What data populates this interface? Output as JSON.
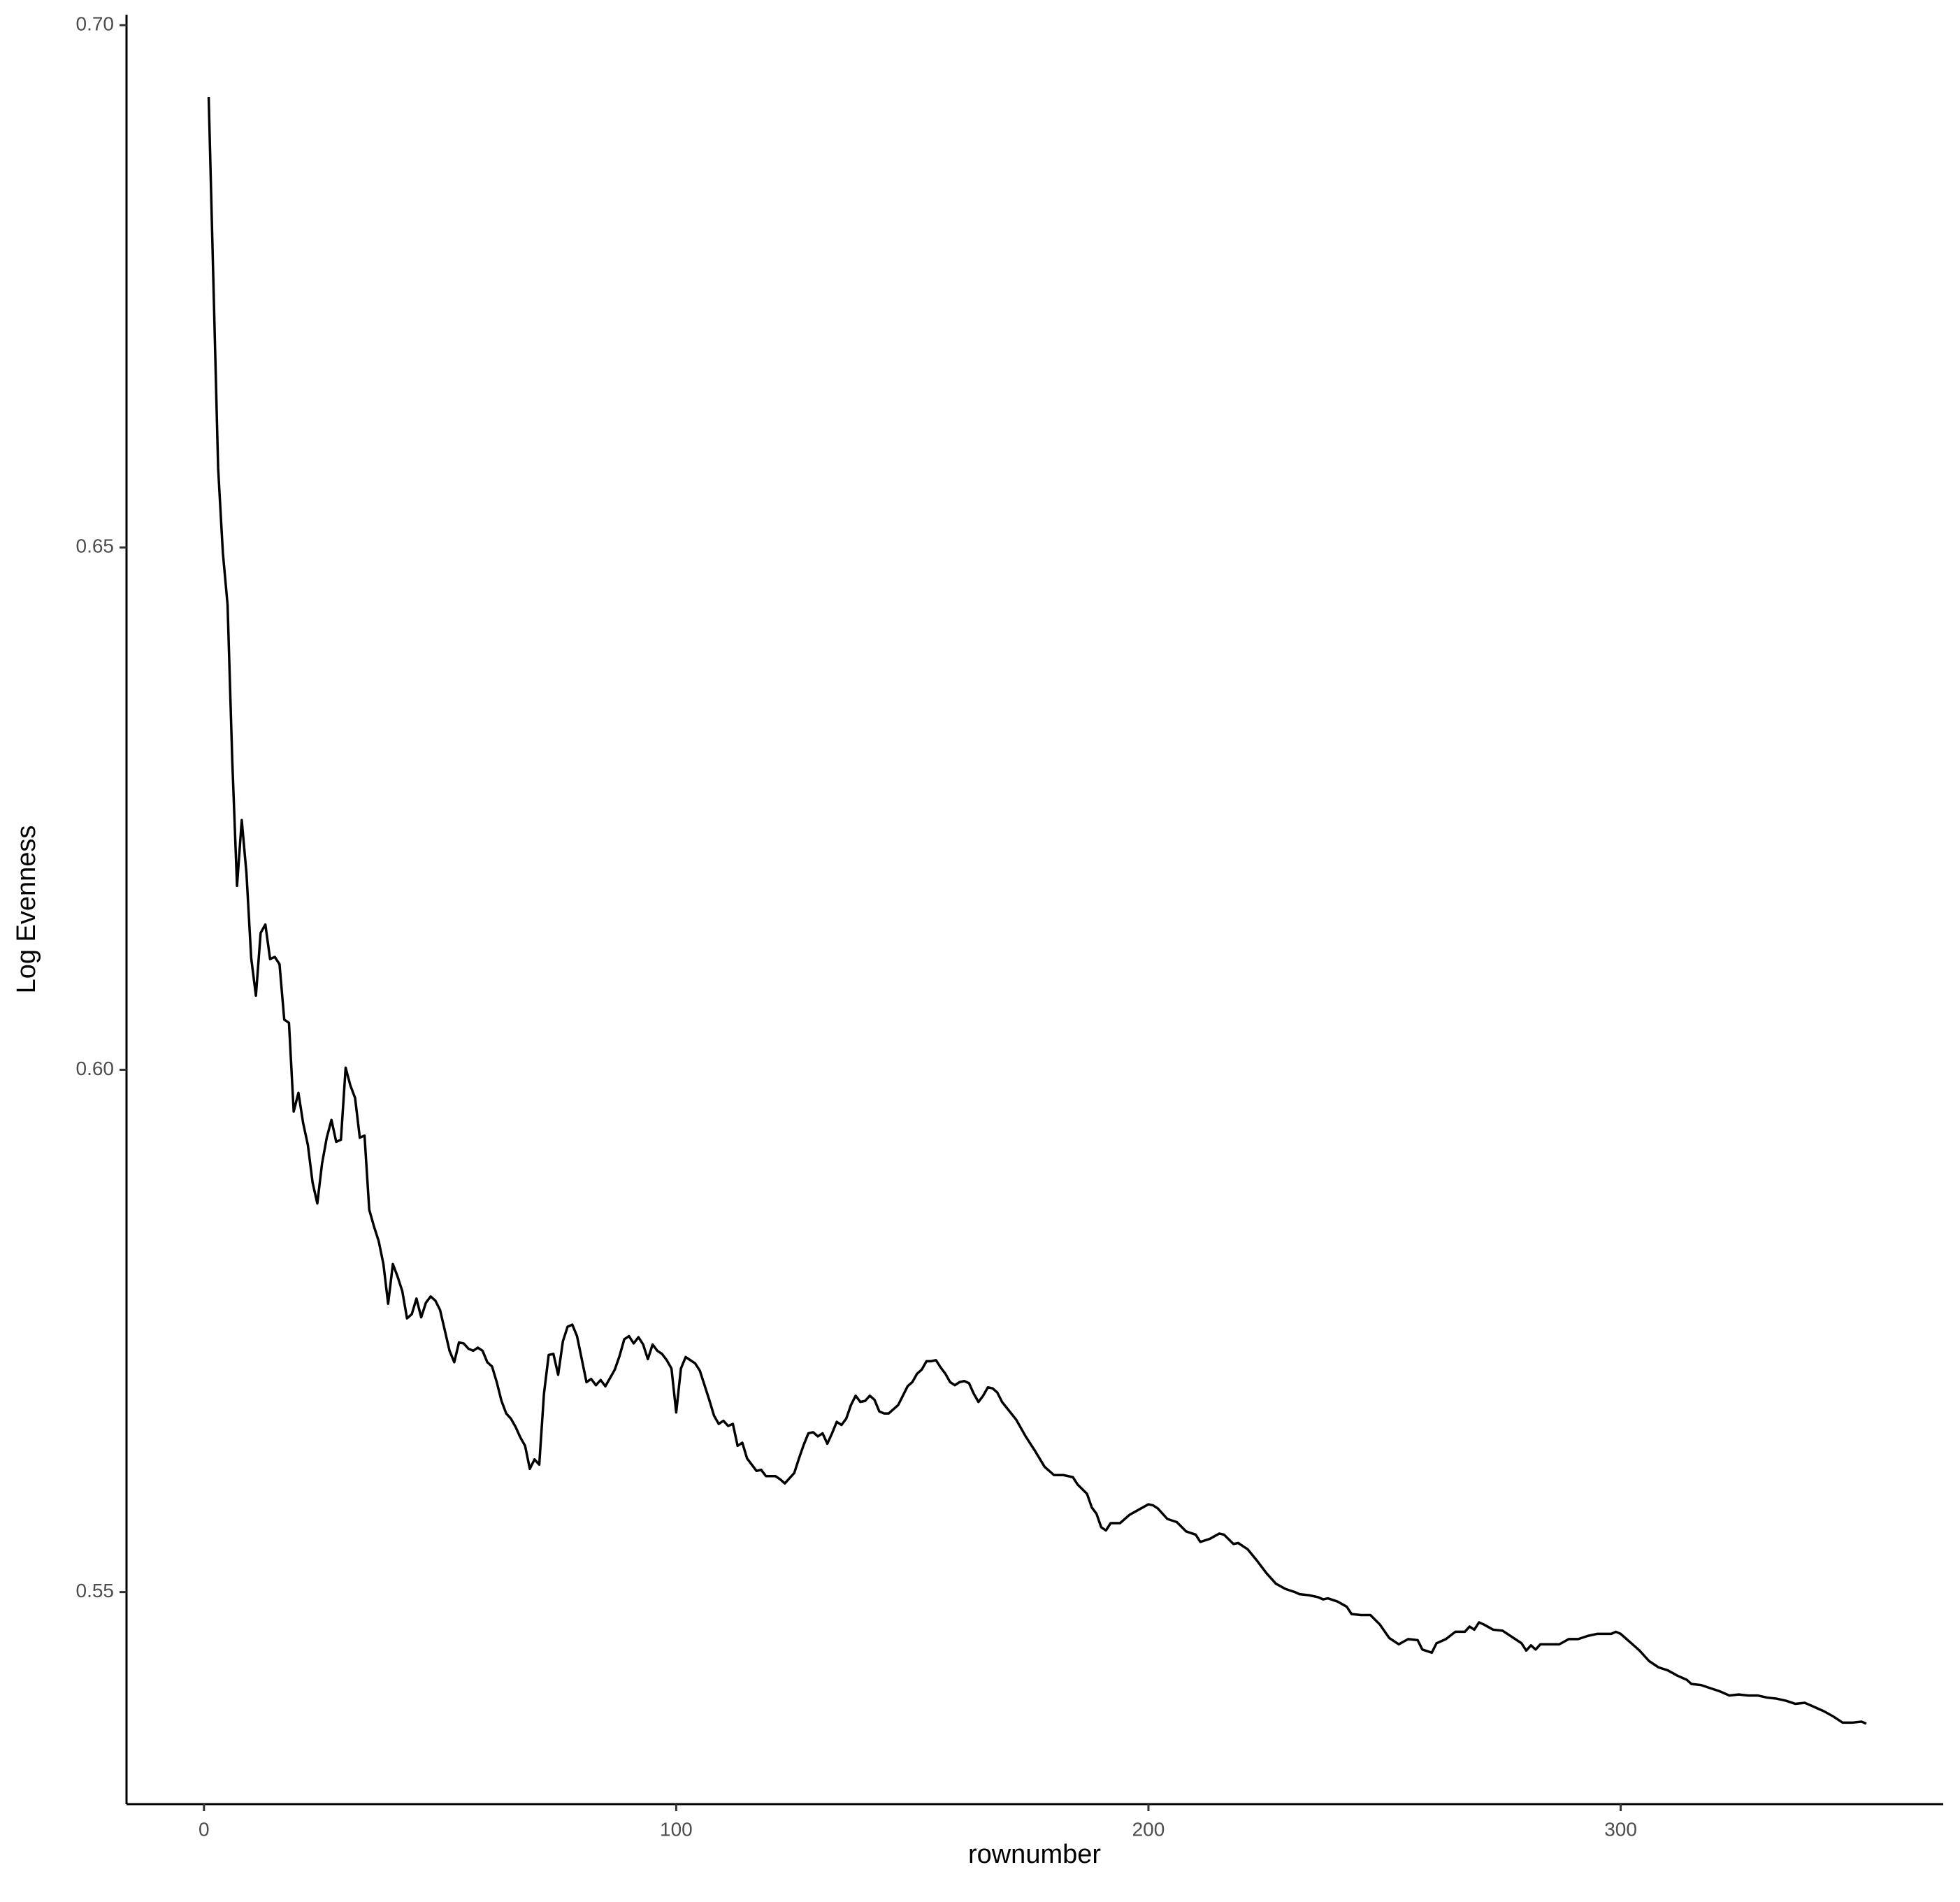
{
  "chart_data": {
    "type": "line",
    "x_label": "rownumber",
    "y_label": "Log Evenness",
    "color": "#000000",
    "grid": false,
    "xlim": [
      -16.4,
      368.3
    ],
    "ylim": [
      0.5297,
      0.701
    ],
    "xticks": [
      0,
      100,
      200,
      300
    ],
    "yticks": [
      0.55,
      {
        "value": 0.6,
        "label": "0.60"
      },
      0.65,
      {
        "value": 0.7,
        "label": "0.70"
      }
    ],
    "x": [
      1,
      3,
      4,
      5,
      6,
      7,
      8,
      9,
      10,
      11,
      12,
      13,
      14,
      15,
      16,
      17,
      18,
      19,
      20,
      21,
      22,
      23,
      24,
      25,
      26,
      27,
      28,
      29,
      30,
      31,
      32,
      33,
      34,
      35,
      36,
      37,
      38,
      39,
      40,
      41,
      42,
      43,
      44,
      45,
      46,
      47,
      48,
      49,
      50,
      52,
      53,
      54,
      55,
      56,
      57,
      58,
      59,
      60,
      61,
      62,
      63,
      64,
      65,
      66,
      67,
      68,
      69,
      70,
      71,
      72,
      73,
      74,
      75,
      76,
      77,
      78,
      79,
      80,
      81,
      82,
      83,
      84,
      85,
      86,
      87,
      88,
      89,
      90,
      91,
      92,
      93,
      94,
      95,
      96,
      97,
      98,
      99,
      100,
      101,
      102,
      103,
      104,
      105,
      106,
      107,
      108,
      109,
      110,
      111,
      112,
      113,
      114,
      115,
      116,
      117,
      118,
      119,
      120,
      121,
      122,
      123,
      124,
      125,
      126,
      127,
      128,
      129,
      130,
      131,
      132,
      133,
      134,
      135,
      136,
      137,
      138,
      139,
      140,
      141,
      142,
      143,
      144,
      145,
      146,
      147,
      148,
      149,
      150,
      151,
      152,
      153,
      154,
      155,
      156,
      157,
      158,
      159,
      160,
      161,
      162,
      163,
      164,
      165,
      166,
      167,
      168,
      169,
      172,
      174,
      176,
      178,
      180,
      182,
      184,
      185,
      187,
      188,
      189,
      190,
      191,
      192,
      194,
      196,
      198,
      200,
      201,
      202,
      204,
      206,
      208,
      210,
      211,
      213,
      215,
      216,
      218,
      219,
      221,
      223,
      225,
      227,
      229,
      231,
      232,
      234,
      236,
      237,
      238,
      240,
      242,
      243,
      245,
      247,
      249,
      251,
      253,
      255,
      257,
      258,
      260,
      261,
      263,
      265,
      267,
      268,
      269,
      270,
      271,
      273,
      275,
      277,
      278,
      279,
      280,
      281,
      282,
      283,
      285,
      287,
      289,
      291,
      293,
      295,
      296,
      298,
      299,
      300,
      302,
      304,
      306,
      308,
      310,
      312,
      314,
      315,
      317,
      319,
      321,
      323,
      325,
      327,
      329,
      331,
      333,
      335,
      337,
      339,
      341,
      343,
      345,
      347,
      349,
      351,
      352
    ],
    "values": [
      0.6931,
      0.6576,
      0.6495,
      0.6445,
      0.6295,
      0.6176,
      0.6239,
      0.6188,
      0.6107,
      0.6071,
      0.6131,
      0.6139,
      0.6106,
      0.6108,
      0.6101,
      0.6048,
      0.6045,
      0.596,
      0.5978,
      0.5949,
      0.5928,
      0.5892,
      0.5872,
      0.591,
      0.5935,
      0.5952,
      0.5931,
      0.5933,
      0.6002,
      0.5985,
      0.5973,
      0.5935,
      0.5937,
      0.5866,
      0.585,
      0.5836,
      0.5814,
      0.5776,
      0.5814,
      0.5802,
      0.5788,
      0.5762,
      0.5766,
      0.5781,
      0.5763,
      0.5777,
      0.5783,
      0.5779,
      0.577,
      0.5731,
      0.572,
      0.5739,
      0.5738,
      0.5733,
      0.5731,
      0.5734,
      0.5731,
      0.572,
      0.5716,
      0.5701,
      0.5683,
      0.5671,
      0.5666,
      0.5658,
      0.5648,
      0.564,
      0.5618,
      0.5627,
      0.5622,
      0.569,
      0.5727,
      0.5728,
      0.5708,
      0.574,
      0.5754,
      0.5756,
      0.5745,
      0.5723,
      0.5701,
      0.5704,
      0.5698,
      0.5703,
      0.5697,
      0.5705,
      0.5713,
      0.5726,
      0.5742,
      0.5745,
      0.5738,
      0.5744,
      0.5737,
      0.5723,
      0.5737,
      0.5731,
      0.5728,
      0.5722,
      0.5714,
      0.5672,
      0.5714,
      0.5725,
      0.5722,
      0.5719,
      0.5712,
      0.5698,
      0.5684,
      0.5669,
      0.5661,
      0.5664,
      0.5659,
      0.5661,
      0.564,
      0.5643,
      0.5628,
      0.5622,
      0.5616,
      0.5617,
      0.5611,
      0.5611,
      0.5611,
      0.5608,
      0.5604,
      0.5609,
      0.5614,
      0.5628,
      0.5641,
      0.5652,
      0.5653,
      0.5649,
      0.5652,
      0.5642,
      0.5652,
      0.5663,
      0.566,
      0.5666,
      0.5679,
      0.5688,
      0.5682,
      0.5683,
      0.5688,
      0.5684,
      0.5673,
      0.5671,
      0.5671,
      0.5675,
      0.5679,
      0.5688,
      0.5697,
      0.5701,
      0.5709,
      0.5713,
      0.5721,
      0.5721,
      0.5722,
      0.5715,
      0.5709,
      0.5701,
      0.5698,
      0.5701,
      0.5702,
      0.57,
      0.569,
      0.5682,
      0.5688,
      0.5696,
      0.5695,
      0.5691,
      0.5682,
      0.5665,
      0.5649,
      0.5635,
      0.562,
      0.5612,
      0.5612,
      0.561,
      0.5603,
      0.5594,
      0.5581,
      0.5575,
      0.5562,
      0.5559,
      0.5566,
      0.5566,
      0.5574,
      0.5579,
      0.5584,
      0.5583,
      0.558,
      0.557,
      0.5567,
      0.5558,
      0.5555,
      0.5548,
      0.5551,
      0.5556,
      0.5555,
      0.5546,
      0.5547,
      0.5541,
      0.553,
      0.5518,
      0.5508,
      0.5503,
      0.55,
      0.5498,
      0.5497,
      0.5495,
      0.5493,
      0.5494,
      0.5491,
      0.5486,
      0.5479,
      0.5478,
      0.5478,
      0.5469,
      0.5456,
      0.545,
      0.5455,
      0.5454,
      0.5445,
      0.5442,
      0.5451,
      0.5455,
      0.5462,
      0.5462,
      0.5467,
      0.5464,
      0.5471,
      0.5469,
      0.5464,
      0.5463,
      0.5457,
      0.5454,
      0.5451,
      0.5444,
      0.5449,
      0.5445,
      0.545,
      0.545,
      0.545,
      0.5455,
      0.5455,
      0.5458,
      0.546,
      0.546,
      0.546,
      0.5462,
      0.546,
      0.5452,
      0.5444,
      0.5434,
      0.5428,
      0.5425,
      0.542,
      0.5416,
      0.5412,
      0.5411,
      0.5408,
      0.5405,
      0.5401,
      0.5402,
      0.5401,
      0.5401,
      0.5399,
      0.5398,
      0.5396,
      0.5393,
      0.5394,
      0.539,
      0.5386,
      0.5381,
      0.5375,
      0.5375,
      0.5376,
      0.5374
    ]
  }
}
